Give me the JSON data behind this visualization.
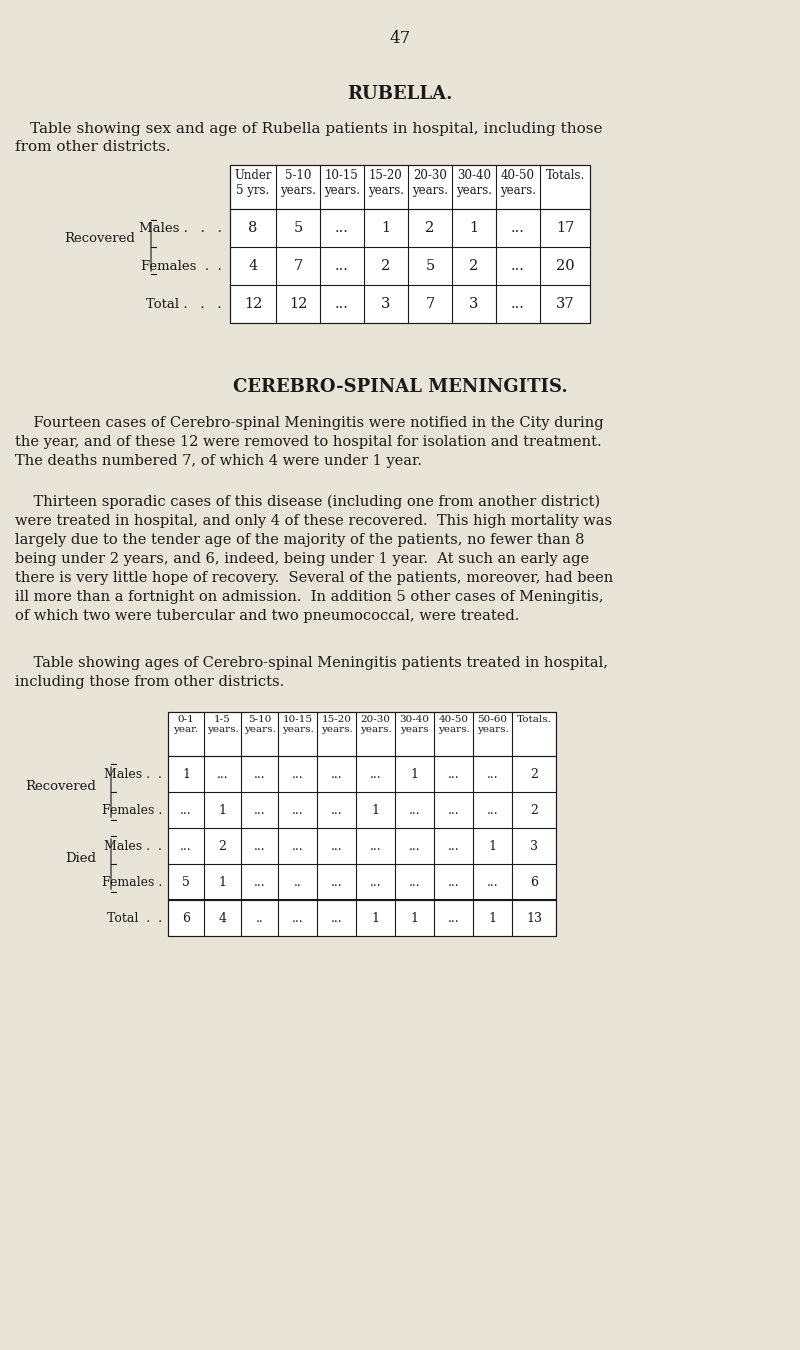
{
  "bg_color": "#e8e4d8",
  "text_color": "#1a1a1a",
  "page_number": "47",
  "rubella_title": "RUBELLA.",
  "rubella_subtitle_line1": "Table showing sex and age of Rubella patients in hospital, including those",
  "rubella_subtitle_line2": "from other districts.",
  "rubella_col_headers": [
    "Under\n5 yrs.",
    "5-10\nyears.",
    "10-15\nyears.",
    "15-20\nyears.",
    "20-30\nyears.",
    "30-40\nyears.",
    "40-50\nyears.",
    "Totals."
  ],
  "rubella_data": [
    [
      "8",
      "5",
      "...",
      "1",
      "2",
      "1",
      "...",
      "17"
    ],
    [
      "4",
      "7",
      "...",
      "2",
      "5",
      "2",
      "...",
      "20"
    ]
  ],
  "rubella_total_row": [
    "12",
    "12",
    "...",
    "3",
    "7",
    "3",
    "...",
    "37"
  ],
  "csm_title": "CEREBRO-SPINAL MENINGITIS.",
  "csm_para1_lines": [
    "    Fourteen cases of Cerebro-spinal Meningitis were notified in the City during",
    "the year, and of these 12 were removed to hospital for isolation and treatment.",
    "The deaths numbered 7, of which 4 were under 1 year."
  ],
  "csm_para2_lines": [
    "    Thirteen sporadic cases of this disease (including one from another district)",
    "were treated in hospital, and only 4 of these recovered.  This high mortality was",
    "largely due to the tender age of the majority of the patients, no fewer than 8",
    "being under 2 years, and 6, indeed, being under 1 year.  At such an early age",
    "there is very little hope of recovery.  Several of the patients, moreover, had been",
    "ill more than a fortnight on admission.  In addition 5 other cases of Meningitis,",
    "of which two were tubercular and two pneumococcal, were treated."
  ],
  "csm_subtitle_line1": "    Table showing ages of Cerebro-spinal Meningitis patients treated in hospital,",
  "csm_subtitle_line2": "including those from other districts.",
  "csm_col_headers": [
    "0-1\nyear.",
    "1-5\nyears.",
    "5-10\nyears.",
    "10-15\nyears.",
    "15-20\nyears.",
    "20-30\nyears.",
    "30-40\nyears",
    "40-50\nyears.",
    "50-60\nyears.",
    "Totals."
  ],
  "csm_data": [
    [
      "1",
      "...",
      "...",
      "...",
      "...",
      "...",
      "1",
      "...",
      "...",
      "2"
    ],
    [
      "...",
      "1",
      "...",
      "...",
      "...",
      "1",
      "...",
      "...",
      "...",
      "2"
    ],
    [
      "...",
      "2",
      "...",
      "...",
      "...",
      "...",
      "...",
      "...",
      "1",
      "3"
    ],
    [
      "5",
      "1",
      "...",
      "..",
      "...",
      "...",
      "...",
      "...",
      "...",
      "6"
    ]
  ],
  "csm_total_row": [
    "6",
    "4",
    "..",
    "...",
    "...",
    "1",
    "1",
    "...",
    "1",
    "13"
  ]
}
